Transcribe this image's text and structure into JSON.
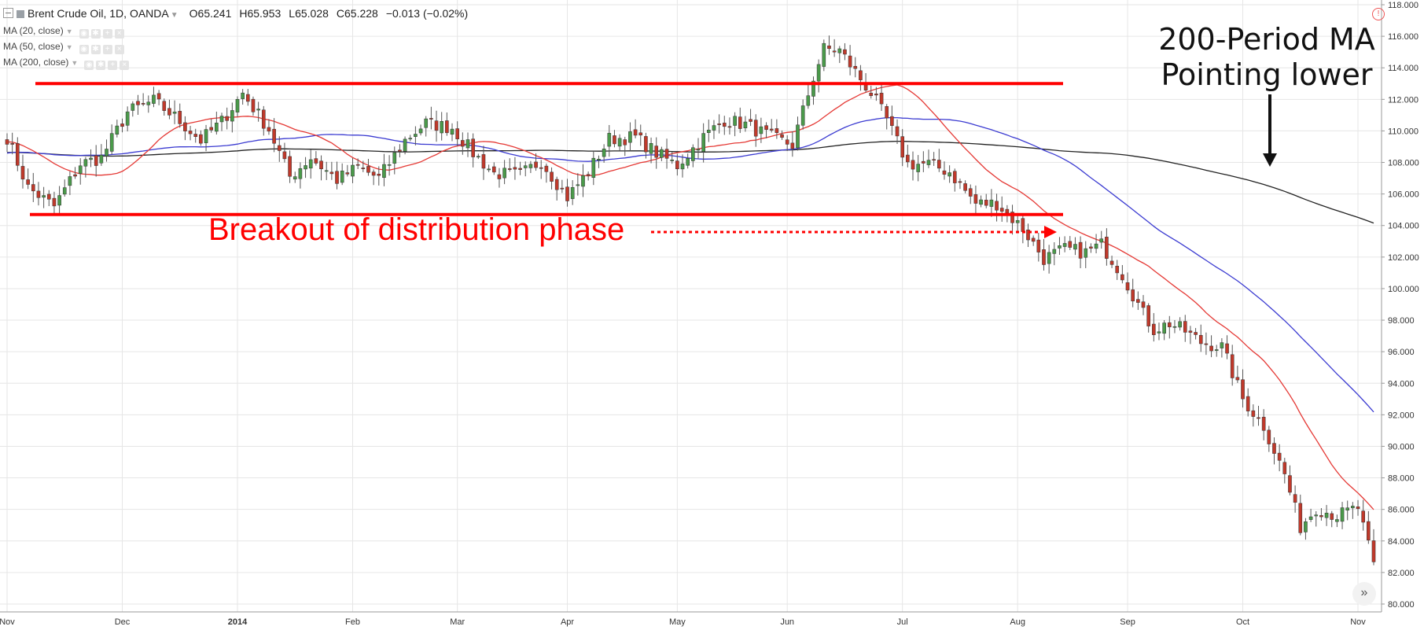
{
  "legend": {
    "symbol": "Brent Crude Oil, 1D, OANDA",
    "open": "O65.241",
    "high": "H65.953",
    "low": "L65.028",
    "close": "C65.228",
    "change": "−0.013 (−0.02%)",
    "indicators": [
      "MA (20, close)",
      "MA (50, close)",
      "MA (200, close)"
    ]
  },
  "annotations": {
    "breakout_text": "Breakout of distribution phase",
    "ma_note_line1": "200-Period MA",
    "ma_note_line2": "Pointing lower"
  },
  "colors": {
    "up": "#4a9a4a",
    "down": "#c0392b",
    "wick": "#555555",
    "ma20": "#e53935",
    "ma50": "#3b3bd1",
    "ma200": "#222222",
    "annotation": "#ff0000",
    "grid": "#e6e6e6"
  },
  "icons": {
    "alert": "alert-circle-icon",
    "scroll": "double-chevron-right-icon"
  },
  "chart_data": {
    "type": "candlestick",
    "title": "Brent Crude Oil, 1D, OANDA",
    "xlabel": "",
    "ylabel": "",
    "x_ticks": [
      "Nov",
      "Dec",
      "2014",
      "Feb",
      "Mar",
      "Apr",
      "May",
      "Jun",
      "Jul",
      "Aug",
      "Sep",
      "Oct",
      "Nov"
    ],
    "y_ticks": [
      "80.000",
      "82.000",
      "84.000",
      "86.000",
      "88.000",
      "90.000",
      "92.000",
      "94.000",
      "96.000",
      "98.000",
      "100.000",
      "102.000",
      "104.000",
      "106.000",
      "108.000",
      "110.000",
      "112.000",
      "114.000",
      "116.000",
      "118.000"
    ],
    "ylim": [
      79.5,
      118.3
    ],
    "xlim": [
      0,
      261
    ],
    "grid": true,
    "resistance_level": 113,
    "support_level": 104.7,
    "anchors": [
      [
        0,
        109.6
      ],
      [
        4,
        106.4
      ],
      [
        9,
        105.2
      ],
      [
        14,
        107.9
      ],
      [
        18,
        108.3
      ],
      [
        23,
        111.2
      ],
      [
        28,
        111.9
      ],
      [
        32,
        110.9
      ],
      [
        37,
        109.4
      ],
      [
        41,
        110.6
      ],
      [
        45,
        112.4
      ],
      [
        50,
        110.1
      ],
      [
        54,
        107.1
      ],
      [
        58,
        108.3
      ],
      [
        63,
        106.9
      ],
      [
        67,
        107.7
      ],
      [
        71,
        107.0
      ],
      [
        76,
        109.4
      ],
      [
        80,
        110.5
      ],
      [
        85,
        110.2
      ],
      [
        89,
        108.6
      ],
      [
        93,
        107.3
      ],
      [
        98,
        107.2
      ],
      [
        102,
        108.1
      ],
      [
        107,
        105.8
      ],
      [
        111,
        107.4
      ],
      [
        115,
        109.5
      ],
      [
        120,
        109.6
      ],
      [
        124,
        108.6
      ],
      [
        128,
        107.8
      ],
      [
        133,
        109.6
      ],
      [
        137,
        110.7
      ],
      [
        141,
        110.4
      ],
      [
        146,
        109.6
      ],
      [
        150,
        109.1
      ],
      [
        154,
        113.4
      ],
      [
        156,
        115.2
      ],
      [
        159,
        115.1
      ],
      [
        163,
        113.3
      ],
      [
        165,
        112.4
      ],
      [
        168,
        110.7
      ],
      [
        172,
        107.9
      ],
      [
        176,
        107.9
      ],
      [
        180,
        107.4
      ],
      [
        185,
        105.4
      ],
      [
        189,
        105.4
      ],
      [
        194,
        103.8
      ],
      [
        198,
        101.9
      ],
      [
        202,
        102.5
      ],
      [
        206,
        102.3
      ],
      [
        209,
        102.8
      ],
      [
        213,
        100.9
      ],
      [
        217,
        98.4
      ],
      [
        219,
        97.4
      ],
      [
        222,
        97.8
      ],
      [
        225,
        97.3
      ],
      [
        228,
        96.6
      ],
      [
        232,
        96.3
      ],
      [
        236,
        93.0
      ],
      [
        240,
        91.3
      ],
      [
        244,
        88.2
      ],
      [
        247,
        84.9
      ],
      [
        250,
        86.1
      ],
      [
        254,
        85.6
      ],
      [
        258,
        86.1
      ],
      [
        261,
        82.4
      ]
    ],
    "series": [
      {
        "name": "MA (20, close)",
        "period": 20
      },
      {
        "name": "MA (50, close)",
        "period": 50
      },
      {
        "name": "MA (200, close)",
        "period": 200
      }
    ]
  }
}
